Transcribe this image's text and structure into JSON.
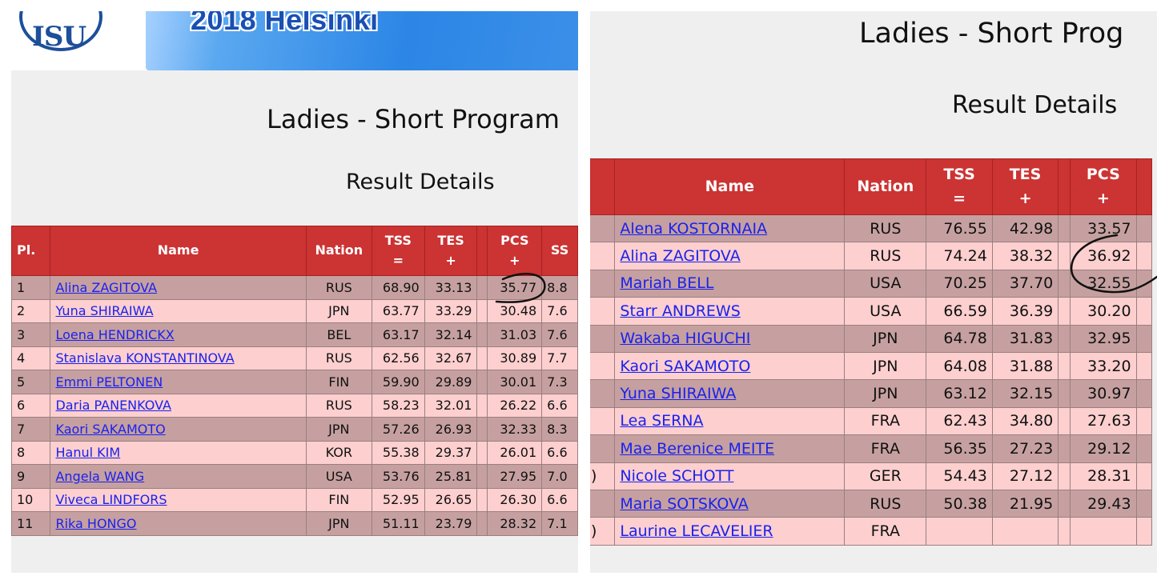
{
  "left": {
    "banner_title": "2018 Helsinki",
    "logo_text": "ISU",
    "title": "Ladies - Short Program",
    "subtitle": "Result Details",
    "headers": {
      "pl": "Pl.",
      "name": "Name",
      "nation": "Nation",
      "tss": "TSS",
      "tss_sym": "=",
      "tes": "TES",
      "tes_sym": "+",
      "pcs": "PCS",
      "pcs_sym": "+",
      "ss": "SS"
    },
    "rows": [
      {
        "pl": "1",
        "name": "Alina ZAGITOVA",
        "nation": "RUS",
        "tss": "68.90",
        "tes": "33.13",
        "pcs": "35.77",
        "ss": "8.8"
      },
      {
        "pl": "2",
        "name": "Yuna SHIRAIWA",
        "nation": "JPN",
        "tss": "63.77",
        "tes": "33.29",
        "pcs": "30.48",
        "ss": "7.6"
      },
      {
        "pl": "3",
        "name": "Loena HENDRICKX",
        "nation": "BEL",
        "tss": "63.17",
        "tes": "32.14",
        "pcs": "31.03",
        "ss": "7.6"
      },
      {
        "pl": "4",
        "name": "Stanislava KONSTANTINOVA",
        "nation": "RUS",
        "tss": "62.56",
        "tes": "32.67",
        "pcs": "30.89",
        "ss": "7.7"
      },
      {
        "pl": "5",
        "name": "Emmi PELTONEN",
        "nation": "FIN",
        "tss": "59.90",
        "tes": "29.89",
        "pcs": "30.01",
        "ss": "7.3"
      },
      {
        "pl": "6",
        "name": "Daria PANENKOVA",
        "nation": "RUS",
        "tss": "58.23",
        "tes": "32.01",
        "pcs": "26.22",
        "ss": "6.6"
      },
      {
        "pl": "7",
        "name": "Kaori SAKAMOTO",
        "nation": "JPN",
        "tss": "57.26",
        "tes": "26.93",
        "pcs": "32.33",
        "ss": "8.3"
      },
      {
        "pl": "8",
        "name": "Hanul KIM",
        "nation": "KOR",
        "tss": "55.38",
        "tes": "29.37",
        "pcs": "26.01",
        "ss": "6.6"
      },
      {
        "pl": "9",
        "name": "Angela WANG",
        "nation": "USA",
        "tss": "53.76",
        "tes": "25.81",
        "pcs": "27.95",
        "ss": "7.0"
      },
      {
        "pl": "10",
        "name": "Viveca LINDFORS",
        "nation": "FIN",
        "tss": "52.95",
        "tes": "26.65",
        "pcs": "26.30",
        "ss": "6.6"
      },
      {
        "pl": "11",
        "name": "Rika HONGO",
        "nation": "JPN",
        "tss": "51.11",
        "tes": "23.79",
        "pcs": "28.32",
        "ss": "7.1"
      }
    ]
  },
  "right": {
    "title": "Ladies - Short Prog",
    "subtitle": "Result Details",
    "headers": {
      "name": "Name",
      "nation": "Nation",
      "tss": "TSS",
      "tss_sym": "=",
      "tes": "TES",
      "tes_sym": "+",
      "pcs": "PCS",
      "pcs_sym": "+"
    },
    "rows": [
      {
        "pl": "",
        "name": "Alena KOSTORNAIA",
        "nation": "RUS",
        "tss": "76.55",
        "tes": "42.98",
        "pcs": "33.57"
      },
      {
        "pl": "",
        "name": "Alina ZAGITOVA",
        "nation": "RUS",
        "tss": "74.24",
        "tes": "38.32",
        "pcs": "36.92"
      },
      {
        "pl": "",
        "name": "Mariah BELL",
        "nation": "USA",
        "tss": "70.25",
        "tes": "37.70",
        "pcs": "32.55"
      },
      {
        "pl": "",
        "name": "Starr ANDREWS",
        "nation": "USA",
        "tss": "66.59",
        "tes": "36.39",
        "pcs": "30.20"
      },
      {
        "pl": "",
        "name": "Wakaba HIGUCHI",
        "nation": "JPN",
        "tss": "64.78",
        "tes": "31.83",
        "pcs": "32.95"
      },
      {
        "pl": "",
        "name": "Kaori SAKAMOTO",
        "nation": "JPN",
        "tss": "64.08",
        "tes": "31.88",
        "pcs": "33.20"
      },
      {
        "pl": "",
        "name": "Yuna SHIRAIWA",
        "nation": "JPN",
        "tss": "63.12",
        "tes": "32.15",
        "pcs": "30.97"
      },
      {
        "pl": "",
        "name": "Lea SERNA",
        "nation": "FRA",
        "tss": "62.43",
        "tes": "34.80",
        "pcs": "27.63"
      },
      {
        "pl": "",
        "name": "Mae Berenice MEITE",
        "nation": "FRA",
        "tss": "56.35",
        "tes": "27.23",
        "pcs": "29.12"
      },
      {
        "pl": ")",
        "name": "Nicole SCHOTT",
        "nation": "GER",
        "tss": "54.43",
        "tes": "27.12",
        "pcs": "28.31"
      },
      {
        "pl": "",
        "name": "Maria SOTSKOVA",
        "nation": "RUS",
        "tss": "50.38",
        "tes": "21.95",
        "pcs": "29.43"
      },
      {
        "pl": ")",
        "name": "Laurine LECAVELIER",
        "nation": "FRA",
        "tss": "",
        "tes": "",
        "pcs": ""
      }
    ]
  },
  "colors": {
    "header_red": "#cc3333",
    "row_dark": "#c6a0a0",
    "row_light": "#fdcfcf",
    "link_blue": "#1a22ee",
    "logo_blue": "#1d4f9a"
  }
}
